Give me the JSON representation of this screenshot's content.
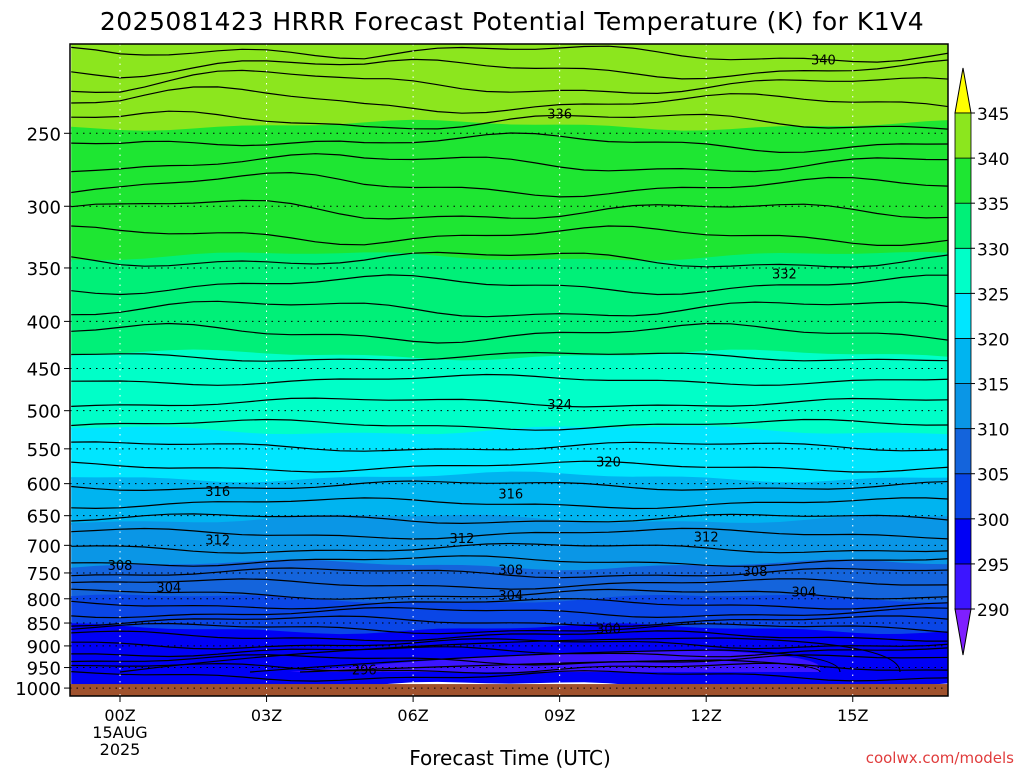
{
  "chart_data": {
    "type": "contour",
    "title": "2025081423 HRRR Forecast Potential Temperature (K) for K1V4",
    "xlabel": "Forecast Time (UTC)",
    "ylabel": "",
    "credit": "coolwx.com/models",
    "x_ticks": [
      {
        "hour": 0,
        "label": "00Z",
        "sub": [
          "15AUG",
          "2025"
        ]
      },
      {
        "hour": 3,
        "label": "03Z"
      },
      {
        "hour": 6,
        "label": "06Z"
      },
      {
        "hour": 9,
        "label": "09Z"
      },
      {
        "hour": 12,
        "label": "12Z"
      },
      {
        "hour": 15,
        "label": "15Z"
      }
    ],
    "x_range_hours": [
      -1,
      17
    ],
    "y_axis": {
      "scale": "log",
      "unit": "hPa",
      "range": [
        1020,
        200
      ],
      "ticks": [
        250,
        300,
        350,
        400,
        450,
        500,
        550,
        600,
        650,
        700,
        750,
        800,
        850,
        900,
        950,
        1000
      ]
    },
    "surface_pressure_hPa": 990,
    "colorbar": {
      "levels": [
        290,
        295,
        300,
        305,
        310,
        315,
        320,
        325,
        330,
        335,
        340,
        345
      ],
      "labels": [
        "290",
        "295",
        "300",
        "305",
        "310",
        "315",
        "320",
        "325",
        "330",
        "335",
        "340",
        "345"
      ],
      "colors": [
        "#7f1fff",
        "#3c15ff",
        "#0000f5",
        "#0a46e6",
        "#1464dc",
        "#0a96e6",
        "#00b4f0",
        "#00e6ff",
        "#00ffc8",
        "#00f078",
        "#1ee632",
        "#8ce61e",
        "#ffff00"
      ]
    },
    "contour_labels": [
      {
        "value": "340",
        "hour": 14.4,
        "p": 208
      },
      {
        "value": "336",
        "hour": 9.0,
        "p": 238
      },
      {
        "value": "332",
        "hour": 13.6,
        "p": 355
      },
      {
        "value": "324",
        "hour": 9.0,
        "p": 492
      },
      {
        "value": "320",
        "hour": 10.0,
        "p": 568
      },
      {
        "value": "316",
        "hour": 2.0,
        "p": 611
      },
      {
        "value": "316",
        "hour": 8.0,
        "p": 615
      },
      {
        "value": "312",
        "hour": 2.0,
        "p": 690
      },
      {
        "value": "312",
        "hour": 7.0,
        "p": 687
      },
      {
        "value": "312",
        "hour": 12.0,
        "p": 685
      },
      {
        "value": "308",
        "hour": 0.0,
        "p": 735
      },
      {
        "value": "308",
        "hour": 8.0,
        "p": 744
      },
      {
        "value": "308",
        "hour": 13.0,
        "p": 746
      },
      {
        "value": "304",
        "hour": 1.0,
        "p": 777
      },
      {
        "value": "304",
        "hour": 8.0,
        "p": 792
      },
      {
        "value": "304",
        "hour": 14.0,
        "p": 786
      },
      {
        "value": "300",
        "hour": 10.0,
        "p": 862
      },
      {
        "value": "296",
        "hour": 5.0,
        "p": 955
      }
    ],
    "bands": [
      {
        "color": "#8ce61e",
        "from": 200,
        "to": 245
      },
      {
        "color": "#1ee632",
        "from": 245,
        "to": 340
      },
      {
        "color": "#00f078",
        "from": 340,
        "to": 435
      },
      {
        "color": "#00ffc8",
        "from": 435,
        "to": 525
      },
      {
        "color": "#00e6ff",
        "from": 525,
        "to": 590
      },
      {
        "color": "#00b4f0",
        "from": 590,
        "to": 655
      },
      {
        "color": "#0a96e6",
        "from": 655,
        "to": 735
      },
      {
        "color": "#1464dc",
        "from": 735,
        "to": 800
      },
      {
        "color": "#0a46e6",
        "from": 800,
        "to": 862
      },
      {
        "color": "#0000f5",
        "from": 862,
        "to": 990
      }
    ]
  }
}
